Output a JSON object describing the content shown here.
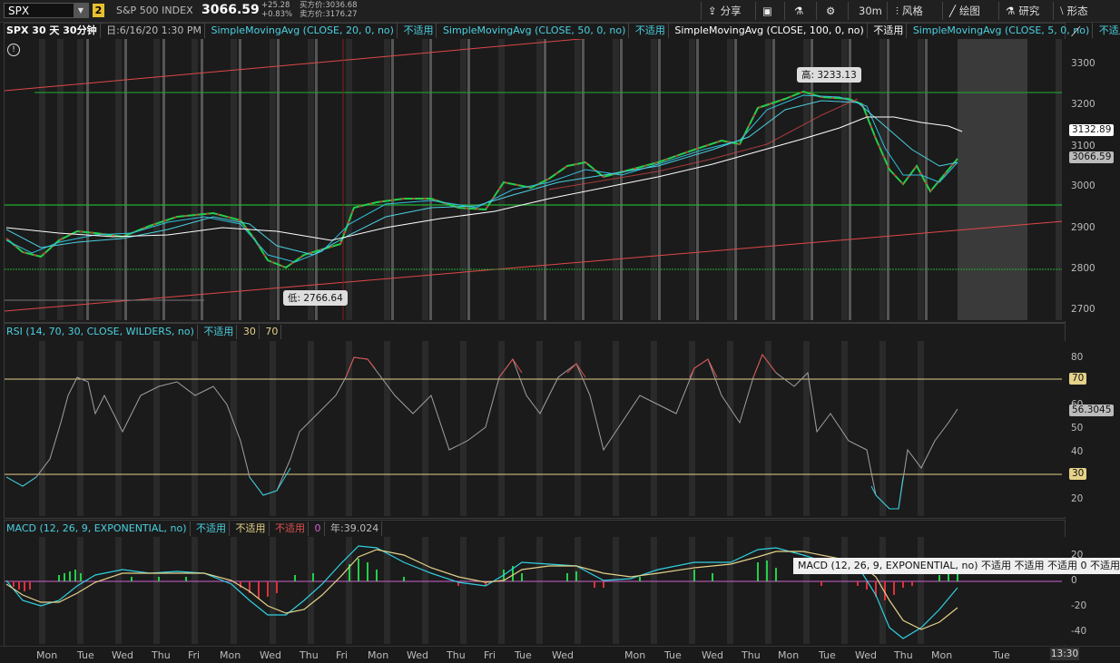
{
  "toolbar": {
    "symbol": "SPX",
    "badge": "2",
    "index_name": "S&P 500 INDEX",
    "price": "3066.59",
    "change": "+25.28",
    "change_pct": "+0.83%",
    "bid": "买方价:3036.68",
    "ask": "卖方价:3176.27",
    "share": "分享",
    "interval": "30m",
    "style": "风格",
    "draw": "绘图",
    "study": "研究",
    "pattern": "形态"
  },
  "infobar": {
    "title": "SPX 30 天 30分钟",
    "date": "日:6/16/20 1:30 PM",
    "sma20": "SimpleMovingAvg (CLOSE, 20, 0, no)",
    "sma50": "SimpleMovingAvg (CLOSE, 50, 0, no)",
    "sma100": "SimpleMovingAvg (CLOSE, 100, 0, no)",
    "sma5": "SimpleMovingAvg (CLOSE, 5, 0, no)",
    "na": "不适用"
  },
  "price_axis": {
    "ticks": [
      "3300",
      "3200",
      "3100",
      "3000",
      "2900",
      "2800",
      "2700"
    ],
    "tag_upper": "3132.89",
    "tag_last": "3066.59"
  },
  "callouts": {
    "high": "高: 3233.13",
    "low": "低: 2766.64"
  },
  "rsi": {
    "header": "RSI (14, 70, 30, CLOSE, WILDERS, no)",
    "na": "不适用",
    "ob": "30",
    "os": "70",
    "ticks": [
      "80",
      "60",
      "50",
      "40",
      "20"
    ],
    "tag70": "70",
    "tag30": "30",
    "last": "56.3045"
  },
  "macd": {
    "header": "MACD (12, 26, 9, EXPONENTIAL, no)",
    "na": "不适用",
    "zero": "0",
    "year": "年:39.024",
    "ticks": [
      "20",
      "0",
      "-20",
      "-40"
    ],
    "tooltip": "MACD (12, 26, 9, EXPONENTIAL, no) 不适用 不适用 不适用 0 不适用 不适用 不适"
  },
  "time_axis": {
    "days": [
      "Mon",
      "Tue",
      "Wed",
      "Thu",
      "Fri",
      "Mon",
      "Wed",
      "Thu",
      "Fri",
      "Mon",
      "Wed",
      "Thu",
      "Fri",
      "Tue",
      "Wed",
      "Mon",
      "Tue",
      "Wed",
      "Thu",
      "Mon",
      "Tue",
      "Wed",
      "Thu",
      "Mon",
      "Tue"
    ],
    "time": "13:30"
  },
  "colors": {
    "up": "#22d04a",
    "down": "#e0303a",
    "sma20": "#30c0e0",
    "sma50": "#4ad0e0",
    "sma100": "#ffffff",
    "sma5": "#30d0d0",
    "trend": "#e04848",
    "level": "#20b030",
    "rsi": "#a0a0a0",
    "macd": "#30d0e0",
    "signal": "#e6d28a"
  }
}
